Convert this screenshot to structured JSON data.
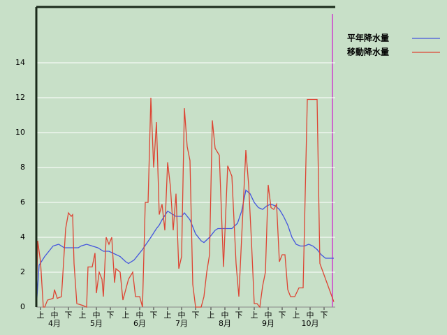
{
  "chart_data": {
    "type": "line",
    "xlim": [
      0,
      214
    ],
    "ylim": [
      0,
      17.2
    ],
    "yticks": [
      0,
      2,
      4,
      6,
      8,
      10,
      12,
      14
    ],
    "grid": true,
    "legend": "top-right",
    "xticks": [
      {
        "value": 3,
        "label": "上"
      },
      {
        "value": 13,
        "label": "中"
      },
      {
        "value": 23,
        "label": "下"
      },
      {
        "value": 33,
        "label": "上"
      },
      {
        "value": 43,
        "label": "中"
      },
      {
        "value": 53,
        "label": "下"
      },
      {
        "value": 64,
        "label": "上"
      },
      {
        "value": 74,
        "label": "中"
      },
      {
        "value": 84,
        "label": "下"
      },
      {
        "value": 94,
        "label": "上"
      },
      {
        "value": 104,
        "label": "中"
      },
      {
        "value": 114,
        "label": "下"
      },
      {
        "value": 125,
        "label": "上"
      },
      {
        "value": 135,
        "label": "中"
      },
      {
        "value": 145,
        "label": "下"
      },
      {
        "value": 156,
        "label": "上"
      },
      {
        "value": 166,
        "label": "中"
      },
      {
        "value": 176,
        "label": "下"
      },
      {
        "value": 186,
        "label": "上"
      },
      {
        "value": 196,
        "label": "中"
      },
      {
        "value": 206,
        "label": "下"
      }
    ],
    "month_labels": [
      {
        "value": 13,
        "label": "4月"
      },
      {
        "value": 43,
        "label": "5月"
      },
      {
        "value": 74,
        "label": "6月"
      },
      {
        "value": 104,
        "label": "7月"
      },
      {
        "value": 135,
        "label": "8月"
      },
      {
        "value": 166,
        "label": "9月"
      },
      {
        "value": 196,
        "label": "10月"
      }
    ],
    "series": [
      {
        "name": "平年降水量",
        "color": "#4455dd",
        "x": [
          0,
          2,
          6,
          12,
          16,
          20,
          30,
          32,
          36,
          44,
          48,
          52,
          60,
          64,
          66,
          70,
          76,
          82,
          86,
          88,
          90,
          94,
          100,
          104,
          106,
          110,
          114,
          118,
          120,
          124,
          128,
          130,
          140,
          144,
          147,
          150,
          153,
          156,
          159,
          162,
          165,
          168,
          171,
          174,
          177,
          180,
          183,
          186,
          189,
          192,
          195,
          198,
          201,
          204,
          207,
          210,
          213
        ],
        "values": [
          0,
          2.4,
          2.9,
          3.5,
          3.6,
          3.4,
          3.4,
          3.5,
          3.6,
          3.4,
          3.2,
          3.2,
          2.9,
          2.6,
          2.5,
          2.7,
          3.3,
          4.0,
          4.5,
          4.7,
          5.0,
          5.5,
          5.2,
          5.2,
          5.4,
          5.0,
          4.2,
          3.8,
          3.7,
          4.0,
          4.4,
          4.5,
          4.5,
          4.8,
          5.5,
          6.7,
          6.5,
          6.0,
          5.7,
          5.6,
          5.8,
          5.9,
          5.8,
          5.6,
          5.2,
          4.7,
          4.0,
          3.6,
          3.5,
          3.5,
          3.6,
          3.5,
          3.3,
          3.0,
          2.8,
          2.8,
          2.8
        ]
      },
      {
        "name": "移動降水量",
        "color": "#dd4433",
        "x": [
          0,
          1,
          3,
          5,
          6,
          8,
          12,
          13,
          15,
          18,
          21,
          23,
          25,
          26,
          27,
          29,
          33,
          36,
          37,
          40,
          42,
          43,
          45,
          47,
          48,
          50,
          52,
          54,
          56,
          57,
          60,
          62,
          66,
          69,
          71,
          74,
          76,
          78,
          80,
          82,
          84,
          86,
          88,
          90,
          92,
          94,
          96,
          98,
          100,
          102,
          104,
          106,
          108,
          110,
          112,
          114,
          118,
          120,
          122,
          124,
          126,
          128,
          131,
          134,
          137,
          140,
          143,
          145,
          147,
          150,
          152,
          154,
          156,
          158,
          160,
          162,
          164,
          166,
          168,
          170,
          172,
          174,
          176,
          178,
          180,
          182,
          185,
          188,
          191,
          194,
          198,
          201,
          203,
          213
        ],
        "values": [
          0,
          3.8,
          2.6,
          0,
          0,
          0.4,
          0.5,
          1.0,
          0.5,
          0.6,
          4.5,
          5.4,
          5.2,
          5.3,
          2.5,
          0.2,
          0.1,
          0,
          2.3,
          2.3,
          3.1,
          0.8,
          2.0,
          1.6,
          0.6,
          4.0,
          3.6,
          4.0,
          1.4,
          2.2,
          2.0,
          0.4,
          1.6,
          2.0,
          0.6,
          0.6,
          0,
          6.0,
          6.0,
          12.0,
          8.0,
          10.6,
          5.3,
          5.9,
          4.4,
          8.3,
          6.9,
          4.4,
          6.5,
          2.2,
          2.9,
          11.4,
          9.2,
          8.4,
          1.3,
          0,
          0,
          0.6,
          2.0,
          3.0,
          10.7,
          9.1,
          8.7,
          2.3,
          8.1,
          7.5,
          2.5,
          0.6,
          4.0,
          9.0,
          7.0,
          3.8,
          0.2,
          0.2,
          0,
          1.2,
          2.0,
          7.0,
          5.7,
          5.6,
          5.9,
          2.6,
          3.0,
          3.0,
          1.0,
          0.6,
          0.6,
          1.1,
          1.1,
          11.9,
          11.9,
          11.9,
          2.5,
          0.3
        ]
      }
    ]
  }
}
